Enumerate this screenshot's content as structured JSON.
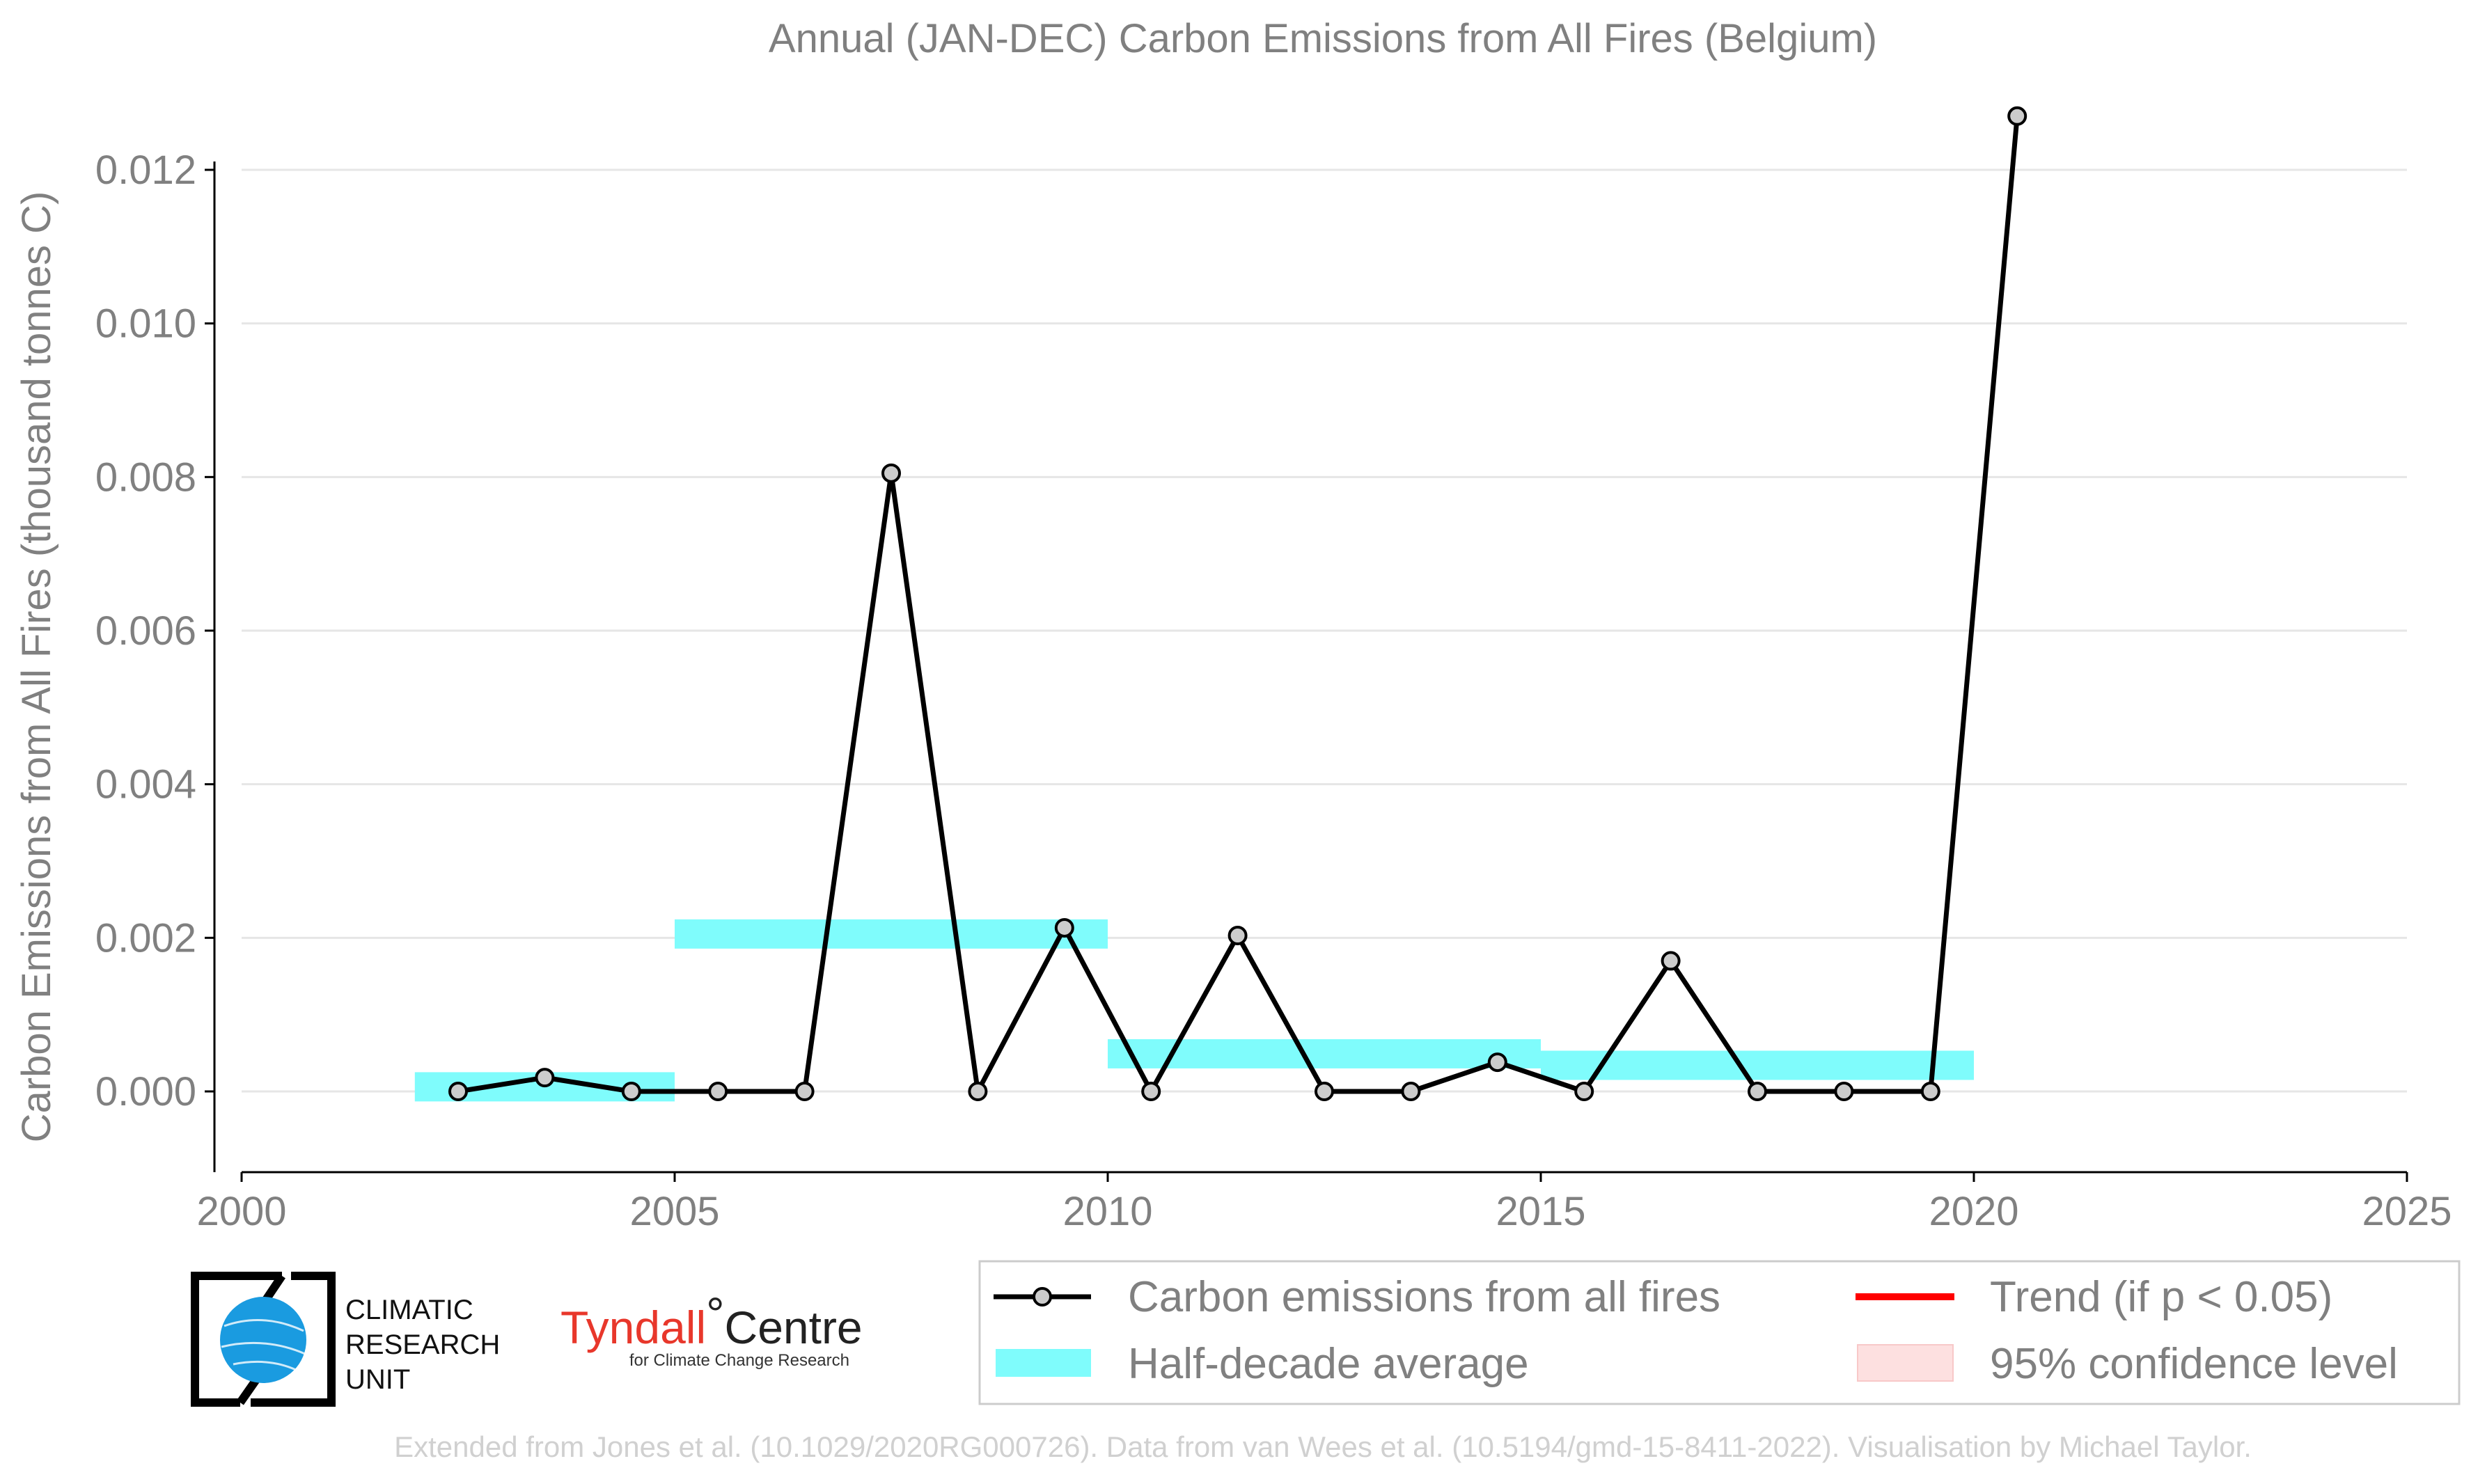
{
  "chart_data": {
    "type": "line",
    "title": "Annual (JAN-DEC) Carbon Emissions from All Fires (Belgium)",
    "xlabel": "",
    "ylabel": "Carbon Emissions from All Fires (thousand tonnes C)",
    "xlim": [
      2000,
      2025
    ],
    "ylim": [
      -0.0009,
      0.0135
    ],
    "x_ticks": [
      2000,
      2005,
      2010,
      2015,
      2020,
      2025
    ],
    "y_ticks": [
      0,
      0.002,
      0.004,
      0.006,
      0.008,
      0.01,
      0.012
    ],
    "y_tick_labels": [
      "0.000",
      "0.002",
      "0.004",
      "0.006",
      "0.008",
      "0.010",
      "0.012"
    ],
    "grid": "horizontal",
    "series": [
      {
        "name": "Carbon emissions from all fires",
        "color": "#000000",
        "marker_fill": "#cccccc",
        "x": [
          2002.5,
          2003.5,
          2004.5,
          2005.5,
          2006.5,
          2007.5,
          2008.5,
          2009.5,
          2010.5,
          2011.5,
          2012.5,
          2013.5,
          2014.5,
          2015.5,
          2016.5,
          2017.5,
          2018.5,
          2019.5,
          2020.5
        ],
        "y": [
          0.0,
          0.00018,
          0.0,
          0.0,
          0.0,
          0.00805,
          0.0,
          0.00213,
          0.0,
          0.00203,
          0.0,
          0.0,
          0.00038,
          0.0,
          0.0017,
          0.0,
          0.0,
          0.0,
          0.0127
        ]
      }
    ],
    "half_decade_average": {
      "name": "Half-decade average",
      "color": "#7ffcfc",
      "segments": [
        {
          "x_start": 2002,
          "x_end": 2005,
          "value": 6e-05
        },
        {
          "x_start": 2005,
          "x_end": 2010,
          "value": 0.00205
        },
        {
          "x_start": 2010,
          "x_end": 2015,
          "value": 0.00049
        },
        {
          "x_start": 2015,
          "x_end": 2020,
          "value": 0.00034
        }
      ]
    },
    "legend": {
      "placement": "bottom-right",
      "entries": [
        {
          "label": "Carbon emissions from all fires",
          "kind": "line-marker",
          "color": "#000000"
        },
        {
          "label": "Trend (if p < 0.05)",
          "kind": "line",
          "color": "#ff0000"
        },
        {
          "label": "Half-decade average",
          "kind": "band",
          "color": "#7ffcfc"
        },
        {
          "label": "95% confidence level",
          "kind": "patch",
          "color": "#fde0e0"
        }
      ]
    }
  },
  "logos": {
    "cru": {
      "line1": "CLIMATIC",
      "line2": "RESEARCH",
      "line3": "UNIT"
    },
    "tyndall": {
      "main": "Tyndall",
      "degree": "°",
      "centre": "Centre",
      "sub": "for Climate Change Research"
    }
  },
  "credit": "Extended from Jones et al. (10.1029/2020RG000726). Data from van Wees et al. (10.5194/gmd-15-8411-2022). Visualisation by Michael Taylor.",
  "colors": {
    "axis": "#000000",
    "grid": "#e6e6e6",
    "text": "#808080",
    "globe": "#1a9be0"
  }
}
